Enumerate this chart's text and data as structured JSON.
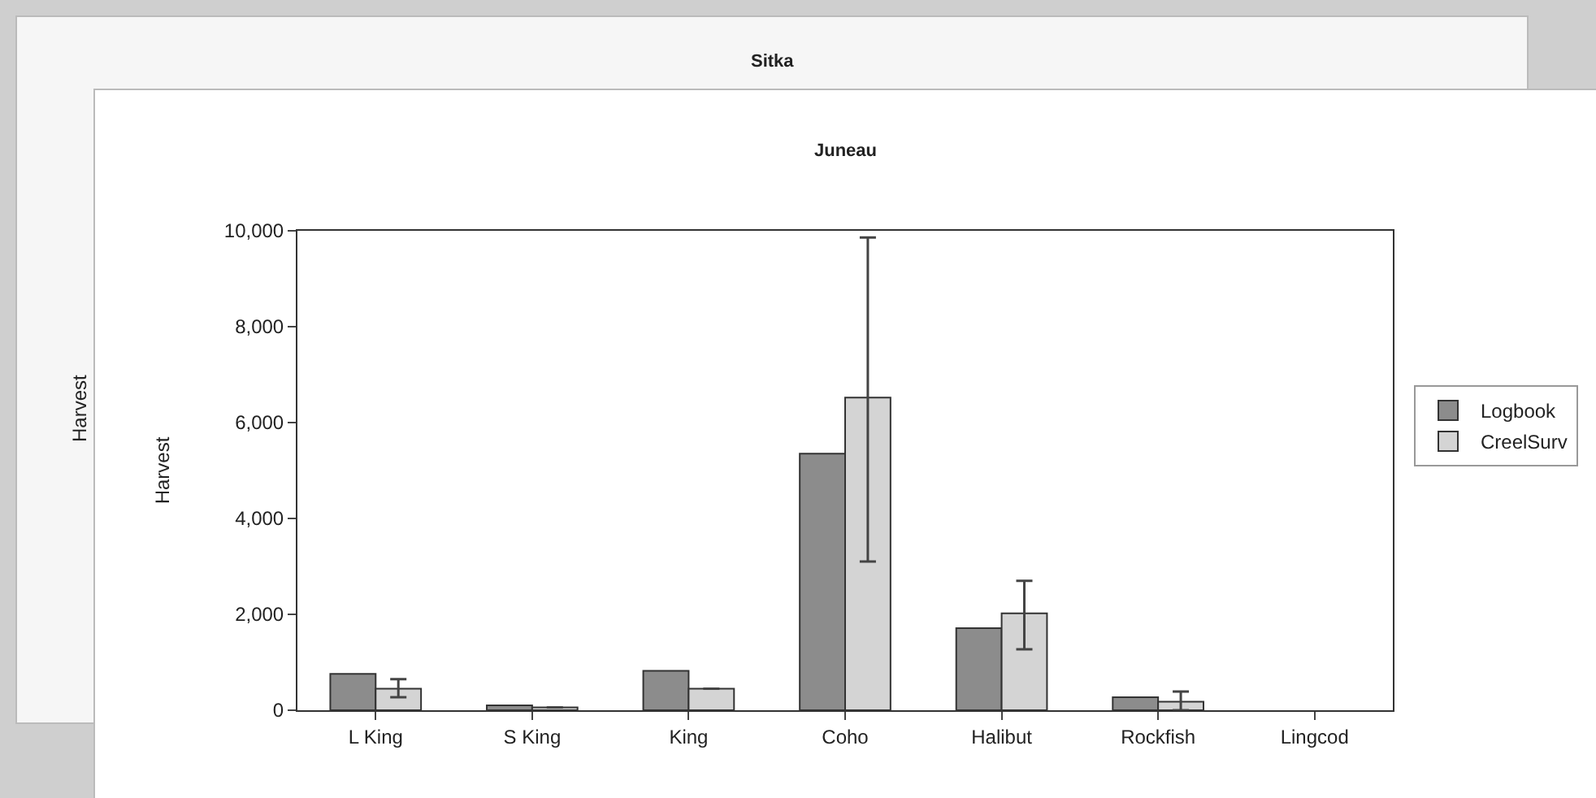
{
  "chart_data": [
    {
      "type": "other",
      "title": "Sitka",
      "ylabel": "Harvest"
    },
    {
      "type": "bar",
      "title": "Juneau",
      "ylabel": "Harvest",
      "categories": [
        "L King",
        "S King",
        "King",
        "Coho",
        "Halibut",
        "Rockfish",
        "Lingcod"
      ],
      "series": [
        {
          "name": "Logbook",
          "color": "#8c8c8c",
          "values": [
            760,
            100,
            820,
            5350,
            1710,
            270,
            null
          ]
        },
        {
          "name": "CreelSurv",
          "color": "#d4d4d4",
          "values": [
            450,
            60,
            450,
            6520,
            2020,
            180,
            null
          ],
          "errors": [
            [
              270,
              650
            ],
            null,
            null,
            [
              3100,
              9860
            ],
            [
              1270,
              2700
            ],
            [
              0,
              390
            ],
            null
          ]
        }
      ],
      "ylim": [
        0,
        10000
      ],
      "yticks": [
        {
          "value": 0,
          "label": "0"
        },
        {
          "value": 2000,
          "label": "2,000"
        },
        {
          "value": 4000,
          "label": "4,000"
        },
        {
          "value": 6000,
          "label": "6,000"
        },
        {
          "value": 8000,
          "label": "8,000"
        },
        {
          "value": 10000,
          "label": "10,000"
        }
      ],
      "legend": "right"
    }
  ]
}
